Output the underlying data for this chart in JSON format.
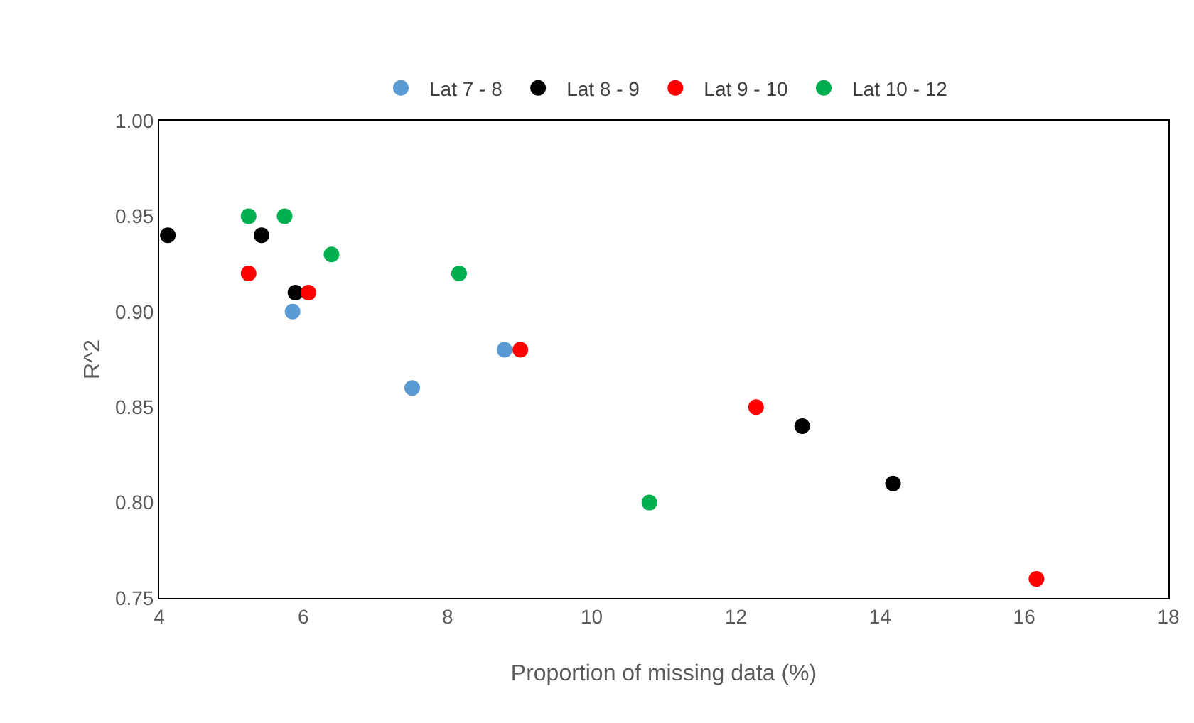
{
  "chart_data": {
    "type": "scatter",
    "xlabel": "Proportion of missing data (%)",
    "ylabel": "R^2",
    "xlim": [
      4,
      18
    ],
    "xticks": [
      4,
      6,
      8,
      10,
      12,
      14,
      16,
      18
    ],
    "ylim": [
      0.75,
      1.0
    ],
    "yticks": [
      {
        "value": 0.75,
        "label": "0.75"
      },
      {
        "value": 0.8,
        "label": "0.80"
      },
      {
        "value": 0.85,
        "label": "0.85"
      },
      {
        "value": 0.9,
        "label": "0.90"
      },
      {
        "value": 0.95,
        "label": "0.95"
      },
      {
        "value": 1.0,
        "label": "1.00"
      }
    ],
    "grid": false,
    "legend": "top",
    "marker": "circle",
    "series": [
      {
        "name": "Lat 7 - 8",
        "color": "#5b9bd5",
        "x": [
          5.85,
          7.51,
          8.79
        ],
        "values": [
          0.9,
          0.86,
          0.88
        ]
      },
      {
        "name": "Lat 8 - 9",
        "color": "#000000",
        "x": [
          4.12,
          5.42,
          5.89,
          12.92,
          14.18
        ],
        "values": [
          0.94,
          0.94,
          0.91,
          0.84,
          0.81
        ]
      },
      {
        "name": "Lat 9 - 10",
        "color": "#ff0000",
        "x": [
          5.24,
          6.07,
          9.01,
          12.28,
          16.17
        ],
        "values": [
          0.92,
          0.91,
          0.88,
          0.85,
          0.76
        ]
      },
      {
        "name": "Lat 10 - 12",
        "color": "#00b050",
        "x": [
          5.24,
          5.74,
          6.39,
          8.16,
          10.8
        ],
        "values": [
          0.95,
          0.95,
          0.93,
          0.92,
          0.8
        ]
      }
    ]
  }
}
